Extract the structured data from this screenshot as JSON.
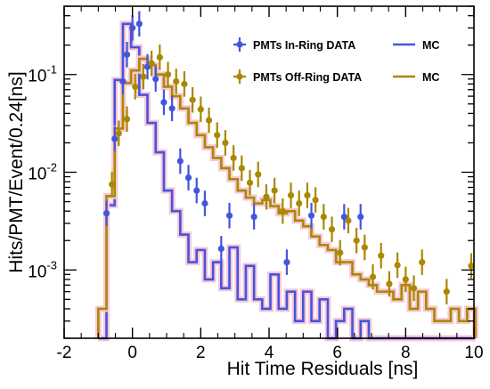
{
  "chart_data": {
    "type": "line",
    "title": "",
    "xlabel": "Hit Time Residuals [ns]",
    "ylabel": "Hits/PMT/Event/0.24[ns]",
    "xlim": [
      -2,
      10
    ],
    "ylim": [
      0.0002,
      0.5
    ],
    "yscale": "log",
    "grid": false,
    "legend_position": "top-right",
    "x_ticks": [
      "-2",
      "0",
      "2",
      "4",
      "6",
      "8",
      "10"
    ],
    "y_ticks": [
      {
        "value": 0.001,
        "base": "10",
        "exp": "-3"
      },
      {
        "value": 0.01,
        "base": "10",
        "exp": "-2"
      },
      {
        "value": 0.1,
        "base": "10",
        "exp": "-1"
      }
    ],
    "bin_edges": [
      -1,
      -0.76,
      -0.52,
      -0.28,
      -0.04,
      0.2,
      0.44,
      0.68,
      0.92,
      1.16,
      1.4,
      1.64,
      1.88,
      2.12,
      2.36,
      2.6,
      2.84,
      3.08,
      3.32,
      3.56,
      3.8,
      4.04,
      4.28,
      4.52,
      4.76,
      5.0,
      5.24,
      5.48,
      5.72,
      5.96,
      6.2,
      6.44,
      6.68,
      6.92,
      7.16,
      7.4,
      7.64,
      7.88,
      8.12,
      8.36,
      8.6,
      8.84,
      9.08,
      9.32,
      9.56,
      9.8,
      10.04
    ],
    "series": [
      {
        "name": "PMTs In-Ring DATA",
        "kind": "points",
        "color": "#4455dd",
        "x": [
          -0.76,
          -0.52,
          -0.28,
          -0.16,
          0.0,
          0.2,
          0.44,
          0.68,
          0.92,
          1.16,
          1.4,
          1.64,
          1.88,
          2.12,
          2.6,
          2.84,
          3.56,
          4.52,
          5.24,
          6.2,
          6.68
        ],
        "y": [
          0.0038,
          0.022,
          0.085,
          0.16,
          0.3,
          0.33,
          0.12,
          0.09,
          0.052,
          0.045,
          0.013,
          0.0088,
          0.0065,
          0.0048,
          0.00165,
          0.0036,
          0.0035,
          0.0012,
          0.0036,
          0.0035,
          0.0035
        ]
      },
      {
        "name": "MC",
        "kind": "histogram",
        "color": "#4455dd",
        "values": [
          0.0002,
          0.0046,
          0.088,
          0.33,
          0.19,
          0.062,
          0.032,
          0.016,
          0.0065,
          0.004,
          0.0023,
          0.0012,
          0.0016,
          0.0008,
          0.0012,
          0.00065,
          0.0017,
          0.0005,
          0.0011,
          0.0005,
          0.0004,
          0.0009,
          0.0004,
          0.0006,
          0.0003,
          0.0006,
          0.0003,
          0.0005,
          0.0002,
          0.0003,
          0.0004,
          0.0002,
          0.0003,
          0.0002,
          0.0002,
          0.0002,
          0.0002,
          0.0002,
          0.0002,
          0.0002,
          0.0002,
          0.0002,
          0.0002,
          0.0002,
          0.0002,
          0.0002
        ]
      },
      {
        "name": "PMTs Off-Ring DATA",
        "kind": "points",
        "color": "#aa8800",
        "x": [
          -0.6,
          -0.4,
          -0.16,
          0.08,
          0.32,
          0.56,
          0.8,
          1.04,
          1.28,
          1.52,
          1.76,
          2.0,
          2.24,
          2.48,
          2.72,
          2.96,
          3.2,
          3.44,
          3.68,
          3.92,
          4.16,
          4.4,
          4.64,
          4.88,
          5.12,
          5.36,
          5.6,
          5.84,
          6.08,
          6.32,
          6.56,
          6.8,
          7.04,
          7.28,
          7.52,
          7.76,
          8.0,
          8.24,
          8.48,
          9.2,
          9.92
        ],
        "y": [
          0.0075,
          0.025,
          0.035,
          0.075,
          0.095,
          0.13,
          0.15,
          0.1,
          0.085,
          0.08,
          0.055,
          0.044,
          0.034,
          0.024,
          0.02,
          0.014,
          0.011,
          0.0078,
          0.0095,
          0.0056,
          0.0065,
          0.004,
          0.0058,
          0.0048,
          0.0058,
          0.0052,
          0.0035,
          0.0026,
          0.0015,
          0.0032,
          0.002,
          0.0017,
          0.00085,
          0.0014,
          0.00072,
          0.00112,
          0.0008,
          0.00065,
          0.0012,
          0.0006,
          0.0011
        ]
      },
      {
        "name": "MC",
        "kind": "histogram",
        "color": "#aa8800",
        "values": [
          0.0004,
          0.0057,
          0.028,
          0.082,
          0.11,
          0.145,
          0.125,
          0.1,
          0.075,
          0.06,
          0.045,
          0.032,
          0.024,
          0.018,
          0.014,
          0.011,
          0.0085,
          0.0065,
          0.0055,
          0.0048,
          0.0052,
          0.0045,
          0.0038,
          0.004,
          0.0032,
          0.0028,
          0.0022,
          0.0018,
          0.0016,
          0.0012,
          0.0012,
          0.0009,
          0.0008,
          0.0007,
          0.0006,
          0.0006,
          0.0005,
          0.0007,
          0.0004,
          0.0006,
          0.0004,
          0.0003,
          0.0003,
          0.0004,
          0.0003,
          0.0004
        ]
      }
    ]
  }
}
